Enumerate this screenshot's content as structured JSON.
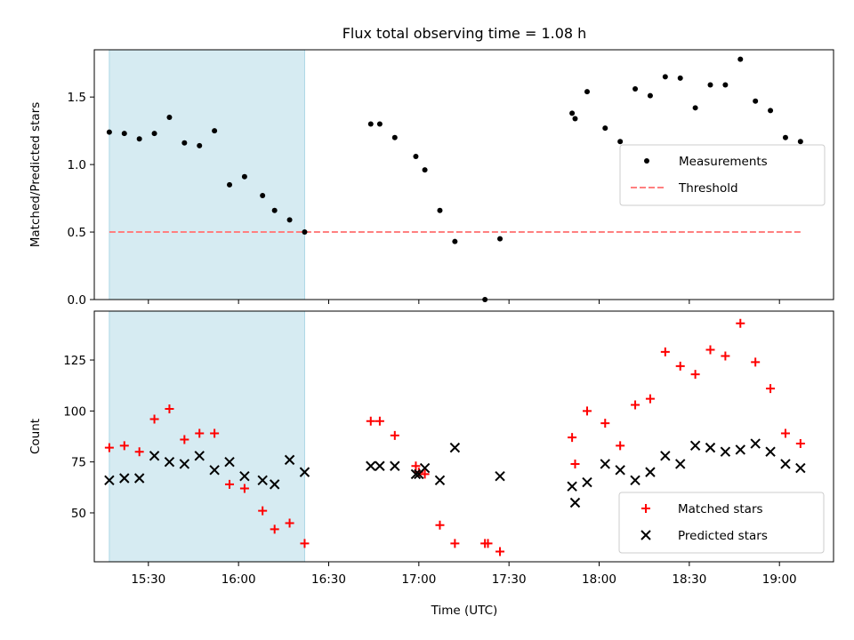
{
  "title": "Flux total observing time = 1.08 h",
  "xlabel": "Time (UTC)",
  "colors": {
    "measurement": "#000000",
    "threshold": "#ff7f7f",
    "matched": "#ff0000",
    "predicted": "#000000",
    "shade": "#add8e6"
  },
  "chart_data": [
    {
      "type": "scatter",
      "ylabel": "Matched/Predicted stars",
      "ylim": [
        0,
        1.85
      ],
      "yticks": [
        0,
        0.5,
        1.0,
        1.5
      ],
      "ytick_labels": [
        "0.0",
        "0.5",
        "1.0",
        "1.5"
      ],
      "xlim": [
        "15:12",
        "19:18"
      ],
      "xticks": [
        "15:30",
        "16:00",
        "16:30",
        "17:00",
        "17:30",
        "18:00",
        "18:30",
        "19:00"
      ],
      "shaded_region": {
        "x": [
          "15:17",
          "16:22"
        ]
      },
      "legend": {
        "position": "right",
        "entries": [
          "Measurements",
          "Threshold"
        ]
      },
      "threshold": {
        "name": "Threshold",
        "y": 0.5,
        "x": [
          "15:17",
          "19:07"
        ]
      },
      "series": [
        {
          "name": "Measurements",
          "marker": "dot",
          "x": [
            "15:17",
            "15:22",
            "15:27",
            "15:32",
            "15:37",
            "15:42",
            "15:47",
            "15:52",
            "15:57",
            "16:02",
            "16:08",
            "16:12",
            "16:17",
            "16:22",
            "16:44",
            "16:47",
            "16:52",
            "16:59",
            "17:02",
            "17:07",
            "17:12",
            "17:22",
            "17:27",
            "17:51",
            "17:52",
            "17:56",
            "18:02",
            "18:07",
            "18:12",
            "18:17",
            "18:22",
            "18:27",
            "18:32",
            "18:37",
            "18:42",
            "18:47",
            "18:52",
            "18:57",
            "19:02",
            "19:07"
          ],
          "y": [
            1.24,
            1.23,
            1.19,
            1.23,
            1.35,
            1.16,
            1.14,
            1.25,
            0.85,
            0.91,
            0.77,
            0.66,
            0.59,
            0.5,
            1.3,
            1.3,
            1.2,
            1.06,
            0.96,
            0.66,
            0.43,
            0.0,
            0.45,
            1.38,
            1.34,
            1.54,
            1.27,
            1.17,
            1.56,
            1.51,
            1.65,
            1.64,
            1.42,
            1.59,
            1.59,
            1.78,
            1.47,
            1.4,
            1.2,
            1.17
          ]
        }
      ]
    },
    {
      "type": "scatter",
      "ylabel": "Count",
      "ylim": [
        26,
        149
      ],
      "yticks": [
        50,
        75,
        100,
        125
      ],
      "ytick_labels": [
        "50",
        "75",
        "100",
        "125"
      ],
      "xlim": [
        "15:12",
        "19:18"
      ],
      "xticks": [
        "15:30",
        "16:00",
        "16:30",
        "17:00",
        "17:30",
        "18:00",
        "18:30",
        "19:00"
      ],
      "shaded_region": {
        "x": [
          "15:17",
          "16:22"
        ]
      },
      "legend": {
        "position": "lower right",
        "entries": [
          "Matched stars",
          "Predicted stars"
        ]
      },
      "series": [
        {
          "name": "Matched stars",
          "marker": "plus",
          "x": [
            "15:17",
            "15:22",
            "15:27",
            "15:32",
            "15:37",
            "15:42",
            "15:47",
            "15:52",
            "15:57",
            "16:02",
            "16:08",
            "16:12",
            "16:17",
            "16:22",
            "16:44",
            "16:47",
            "16:52",
            "16:59",
            "17:00",
            "17:02",
            "17:07",
            "17:12",
            "17:22",
            "17:23",
            "17:27",
            "17:51",
            "17:52",
            "17:56",
            "18:02",
            "18:07",
            "18:12",
            "18:17",
            "18:22",
            "18:27",
            "18:32",
            "18:37",
            "18:42",
            "18:47",
            "18:52",
            "18:57",
            "19:02",
            "19:07"
          ],
          "y": [
            82,
            83,
            80,
            96,
            101,
            86,
            89,
            89,
            64,
            62,
            51,
            42,
            45,
            35,
            95,
            95,
            88,
            73,
            70,
            69,
            44,
            35,
            35,
            35,
            31,
            87,
            74,
            100,
            94,
            83,
            103,
            106,
            129,
            122,
            118,
            130,
            127,
            143,
            124,
            111,
            89,
            84
          ]
        },
        {
          "name": "Predicted stars",
          "marker": "x",
          "x": [
            "15:17",
            "15:22",
            "15:27",
            "15:32",
            "15:37",
            "15:42",
            "15:47",
            "15:52",
            "15:57",
            "16:02",
            "16:08",
            "16:12",
            "16:17",
            "16:22",
            "16:44",
            "16:47",
            "16:52",
            "16:59",
            "17:00",
            "17:02",
            "17:07",
            "17:12",
            "17:27",
            "17:51",
            "17:52",
            "17:56",
            "18:02",
            "18:07",
            "18:12",
            "18:17",
            "18:22",
            "18:27",
            "18:32",
            "18:37",
            "18:42",
            "18:47",
            "18:52",
            "18:57",
            "19:02",
            "19:07"
          ],
          "y": [
            66,
            67,
            67,
            78,
            75,
            74,
            78,
            71,
            75,
            68,
            66,
            64,
            76,
            70,
            73,
            73,
            73,
            69,
            69,
            72,
            66,
            82,
            68,
            63,
            55,
            65,
            74,
            71,
            66,
            70,
            78,
            74,
            83,
            82,
            80,
            81,
            84,
            80,
            74,
            72
          ]
        }
      ]
    }
  ]
}
